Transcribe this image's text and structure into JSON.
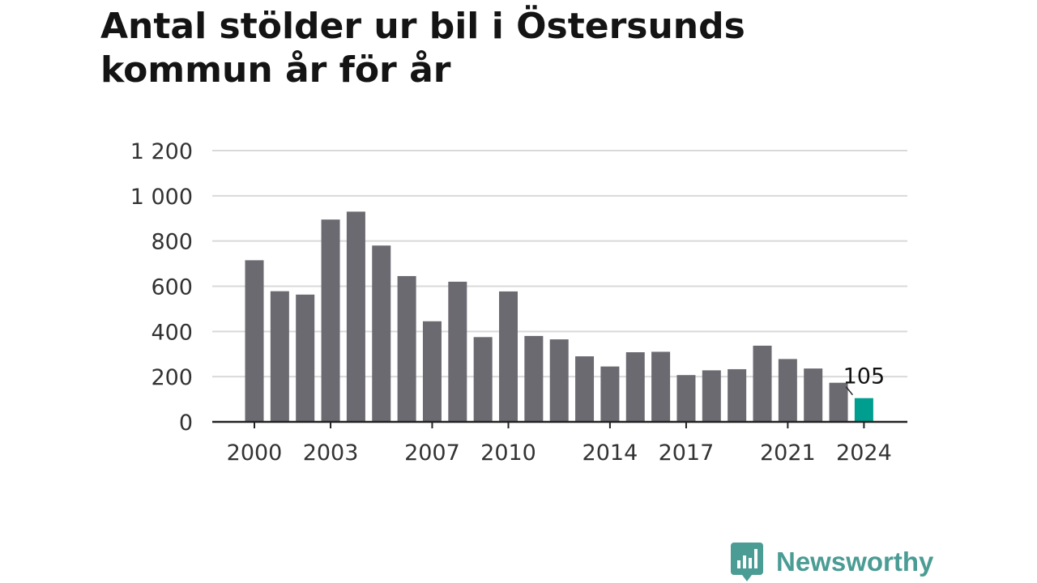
{
  "title_lines": [
    "Antal stölder ur bil i Östersunds",
    "kommun år för år"
  ],
  "brand": {
    "name": "Newsworthy",
    "icon": "newsworthy-logo-icon",
    "color": "#4a9c94"
  },
  "colors": {
    "bar": "#6b6a70",
    "highlight": "#009e8f",
    "grid": "#d9d9d9",
    "axis": "#222222",
    "text": "#333333"
  },
  "chart_data": {
    "type": "bar",
    "title": "Antal stölder ur bil i Östersunds kommun år för år",
    "xlabel": "",
    "ylabel": "",
    "x": [
      2000,
      2001,
      2002,
      2003,
      2004,
      2005,
      2006,
      2007,
      2008,
      2009,
      2010,
      2011,
      2012,
      2013,
      2014,
      2015,
      2016,
      2017,
      2018,
      2019,
      2020,
      2021,
      2022,
      2023,
      2024
    ],
    "values": [
      715,
      578,
      563,
      895,
      930,
      780,
      645,
      445,
      620,
      375,
      577,
      380,
      365,
      290,
      245,
      308,
      310,
      207,
      228,
      233,
      337,
      278,
      236,
      173,
      105
    ],
    "x_tick_labels": [
      "2000",
      "2003",
      "2007",
      "2010",
      "2014",
      "2017",
      "2021",
      "2024"
    ],
    "x_tick_values": [
      2000,
      2003,
      2007,
      2010,
      2014,
      2017,
      2021,
      2024
    ],
    "y_ticks": [
      0,
      200,
      400,
      600,
      800,
      1000,
      1200
    ],
    "y_tick_labels": [
      "0",
      "200",
      "400",
      "600",
      "800",
      "1 000",
      "1 200"
    ],
    "ylim": [
      0,
      1200
    ],
    "grid": true,
    "highlight": {
      "x": 2024,
      "label": "105"
    }
  }
}
